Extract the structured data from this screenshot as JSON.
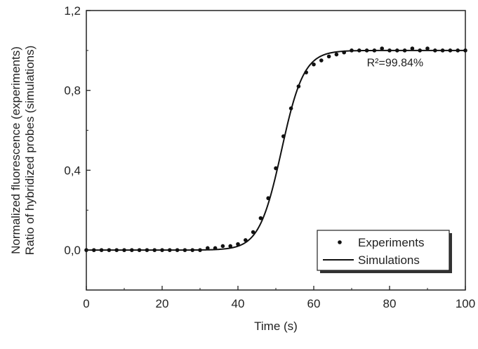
{
  "chart_data": {
    "type": "scatter",
    "xlabel": "Time (s)",
    "ylabel_lines": [
      "Normalized fluorescence (experiments)",
      "Ratio of hybridized probes (simulations)"
    ],
    "xlim": [
      0,
      100
    ],
    "ylim": [
      -0.2,
      1.2
    ],
    "xticks": [
      0,
      20,
      40,
      60,
      80,
      100
    ],
    "yticks": [
      0.0,
      0.4,
      0.8,
      1.2
    ],
    "ytick_labels": [
      "0,0",
      "0,4",
      "0,8",
      "1,2"
    ],
    "grid": false,
    "legend_position": "bottom-right",
    "annotation": {
      "text": "R²=99.84%",
      "x": 74,
      "y": 0.92
    },
    "series": [
      {
        "name": "Experiments",
        "kind": "markers",
        "x": [
          0,
          2,
          4,
          6,
          8,
          10,
          12,
          14,
          16,
          18,
          20,
          22,
          24,
          26,
          28,
          30,
          32,
          34,
          36,
          38,
          40,
          42,
          44,
          46,
          48,
          50,
          52,
          54,
          56,
          58,
          60,
          62,
          64,
          66,
          68,
          70,
          72,
          74,
          76,
          78,
          80,
          82,
          84,
          86,
          88,
          90,
          92,
          94,
          96,
          98,
          100
        ],
        "y": [
          0.0,
          0.0,
          0.0,
          0.0,
          0.0,
          0.0,
          0.0,
          0.0,
          0.0,
          0.0,
          0.0,
          0.0,
          0.0,
          0.0,
          0.0,
          0.0,
          0.01,
          0.01,
          0.02,
          0.02,
          0.03,
          0.05,
          0.09,
          0.16,
          0.26,
          0.41,
          0.57,
          0.71,
          0.82,
          0.89,
          0.93,
          0.95,
          0.97,
          0.98,
          0.99,
          1.0,
          1.0,
          1.0,
          1.0,
          1.01,
          1.0,
          1.0,
          1.0,
          1.01,
          1.0,
          1.01,
          1.0,
          1.0,
          1.0,
          1.0,
          1.0
        ]
      },
      {
        "name": "Simulations",
        "kind": "sigmoid-line",
        "model": {
          "midpoint": 51.5,
          "rate": 0.34,
          "baseline": 0.0,
          "plateau": 1.0
        }
      }
    ]
  }
}
